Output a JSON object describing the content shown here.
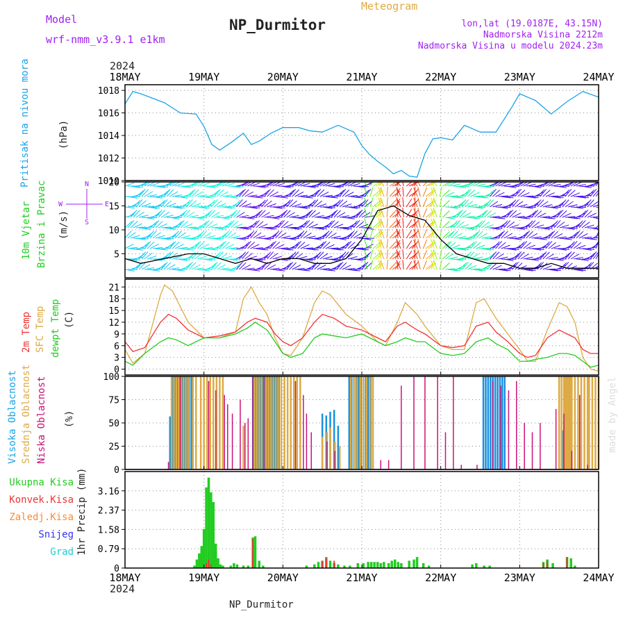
{
  "header": {
    "model_label": "Model",
    "model_name": "wrf-nmm_v3.9.1 e1km",
    "subtitle": "Meteogram",
    "station": "NP_Durmitor",
    "coords": "lon,lat (19.0187E, 43.15N)",
    "elevation": "Nadmorska Visina 2212m",
    "model_elevation": "Nadmorska Visina u modelu 2024.23m"
  },
  "time_axis": {
    "year": "2024",
    "ticks": [
      "18MAY",
      "19MAY",
      "20MAY",
      "21MAY",
      "22MAY",
      "23MAY",
      "24MAY"
    ]
  },
  "footer": {
    "station": "NP_Durmitor"
  },
  "watermark": "made by Angel",
  "colors": {
    "pressure": "#1aa3e8",
    "red": "#ee3333",
    "orange": "#ddaa44",
    "green": "#22cc22",
    "purple": "#a020f0",
    "magenta": "#cc1177",
    "blue": "#1a90dd",
    "cyan": "#22cccc",
    "snow": "#3333ee",
    "precip_orange": "#ff8833"
  },
  "panels": {
    "pressure": {
      "ylabel": "Pritisak na nivou mora",
      "unit": "(hPa)"
    },
    "wind": {
      "ylabel1": "10m Vjetar",
      "ylabel2": "Brzina i Pravac",
      "unit": "(m/s)",
      "compass_n": "N",
      "compass_s": "S",
      "compass_w": "W",
      "compass_e": "E"
    },
    "temp": {
      "label_2m": "2m Temp",
      "label_sfc": "SFC Temp",
      "label_dew": "dewpt Temp",
      "unit": "(C)"
    },
    "cloud": {
      "label_high": "Visoka Oblacnost",
      "label_mid": "Srednja Oblacnost",
      "label_low": "Niska Oblacnost",
      "unit": "(%)"
    },
    "precip": {
      "label_total": "Ukupna Kisa",
      "label_conv": "Konvek.Kisa",
      "label_frz": "Zaledj.Kisa",
      "label_snow": "Snijeg",
      "label_hail": "Grad",
      "unit": "1hr Precip (mm)"
    }
  },
  "chart_data": [
    {
      "type": "line",
      "panel": "pressure",
      "x_unit": "days since 18MAY 00UTC",
      "ylim": [
        1010,
        1018.5
      ],
      "yticks": [
        "1010",
        "1012",
        "1014",
        "1016",
        "1018"
      ],
      "grid": true,
      "series": [
        {
          "name": "Pritisak na nivou mora",
          "x": [
            0,
            0.1,
            0.2,
            0.35,
            0.5,
            0.7,
            0.9,
            1.0,
            1.1,
            1.2,
            1.35,
            1.5,
            1.6,
            1.7,
            1.85,
            2.0,
            2.2,
            2.35,
            2.5,
            2.7,
            2.9,
            3.0,
            3.1,
            3.2,
            3.3,
            3.4,
            3.5,
            3.6,
            3.7,
            3.8,
            3.9,
            4.0,
            4.15,
            4.3,
            4.5,
            4.7,
            4.9,
            5.0,
            5.2,
            5.4,
            5.6,
            5.8,
            6.0
          ],
          "y": [
            1016.8,
            1017.9,
            1017.7,
            1017.3,
            1016.9,
            1016,
            1015.9,
            1014.8,
            1013.2,
            1012.7,
            1013.4,
            1014.2,
            1013.2,
            1013.5,
            1014.2,
            1014.7,
            1014.7,
            1014.4,
            1014.3,
            1014.9,
            1014.3,
            1013.1,
            1012.3,
            1011.7,
            1011.2,
            1010.6,
            1010.9,
            1010.4,
            1010.3,
            1012.4,
            1013.7,
            1013.8,
            1013.6,
            1014.9,
            1014.3,
            1014.3,
            1016.5,
            1017.7,
            1017.1,
            1015.9,
            1017.0,
            1017.9,
            1017.4
          ]
        }
      ]
    },
    {
      "type": "line",
      "panel": "wind",
      "x_unit": "days since 18MAY 00UTC",
      "ylim": [
        0,
        20
      ],
      "yticks": [
        "5",
        "10",
        "15",
        "20"
      ],
      "grid": true,
      "series": [
        {
          "name": "Brzina i Pravac",
          "x": [
            0,
            0.2,
            0.5,
            0.8,
            1.0,
            1.2,
            1.4,
            1.6,
            1.8,
            2.0,
            2.2,
            2.4,
            2.6,
            2.8,
            3.0,
            3.2,
            3.4,
            3.6,
            3.8,
            4.0,
            4.2,
            4.4,
            4.6,
            4.8,
            5.0,
            5.2,
            5.4,
            5.6,
            5.8,
            6.0
          ],
          "y": [
            4,
            3,
            4,
            5,
            5,
            4,
            3,
            4,
            3,
            4,
            4,
            3,
            3,
            4,
            8,
            14,
            15,
            13,
            12,
            8,
            5,
            4,
            3,
            3,
            2,
            2,
            3,
            2,
            2,
            2
          ]
        }
      ]
    },
    {
      "type": "line",
      "panel": "temp",
      "x_unit": "days since 18MAY 00UTC",
      "ylim": [
        -1.5,
        23
      ],
      "yticks": [
        "0",
        "3",
        "6",
        "9",
        "12",
        "15",
        "18",
        "21"
      ],
      "grid": true,
      "series": [
        {
          "name": "2m Temp",
          "x": [
            0,
            0.1,
            0.25,
            0.45,
            0.55,
            0.65,
            0.8,
            1.0,
            1.2,
            1.4,
            1.55,
            1.65,
            1.8,
            1.9,
            2.0,
            2.1,
            2.25,
            2.4,
            2.5,
            2.65,
            2.8,
            3.0,
            3.2,
            3.3,
            3.45,
            3.55,
            3.7,
            3.8,
            4.0,
            4.15,
            4.3,
            4.45,
            4.6,
            4.7,
            4.85,
            5.0,
            5.1,
            5.2,
            5.35,
            5.5,
            5.6,
            5.7,
            5.8,
            5.9,
            6.0
          ],
          "y": [
            7,
            4.5,
            5.5,
            12,
            14,
            13,
            10,
            8,
            8.5,
            9.5,
            12,
            13,
            12,
            9,
            7,
            6,
            8,
            12,
            14,
            13,
            11,
            10,
            8,
            7,
            11,
            12,
            10,
            9,
            6,
            5.5,
            6,
            11,
            12,
            9.5,
            7,
            4,
            3,
            3.5,
            8,
            10,
            9,
            8,
            5,
            4,
            4
          ]
        },
        {
          "name": "SFC Temp",
          "x": [
            0,
            0.1,
            0.25,
            0.45,
            0.5,
            0.6,
            0.8,
            1.0,
            1.2,
            1.4,
            1.5,
            1.6,
            1.7,
            1.8,
            1.9,
            2.0,
            2.1,
            2.25,
            2.4,
            2.5,
            2.6,
            2.8,
            3.0,
            3.2,
            3.3,
            3.45,
            3.55,
            3.7,
            3.8,
            4.0,
            4.15,
            4.3,
            4.45,
            4.55,
            4.7,
            4.85,
            5.0,
            5.1,
            5.2,
            5.35,
            5.5,
            5.6,
            5.7,
            5.8,
            5.9,
            6.0
          ],
          "y": [
            5,
            1.5,
            4,
            19,
            21.5,
            20,
            12,
            8,
            8,
            9.5,
            18,
            21,
            17,
            14,
            8,
            4,
            3.5,
            8,
            17,
            20,
            19,
            14,
            11,
            7,
            6,
            12,
            17,
            14,
            11,
            6,
            5,
            5,
            17,
            18,
            13,
            9,
            5,
            2,
            2,
            10,
            17,
            16,
            12,
            3,
            0,
            -0.5
          ]
        },
        {
          "name": "dewpt Temp",
          "x": [
            0,
            0.1,
            0.25,
            0.45,
            0.55,
            0.65,
            0.8,
            1.0,
            1.2,
            1.4,
            1.55,
            1.65,
            1.8,
            1.9,
            2.0,
            2.1,
            2.25,
            2.4,
            2.5,
            2.65,
            2.8,
            3.0,
            3.2,
            3.3,
            3.45,
            3.55,
            3.7,
            3.8,
            4.0,
            4.15,
            4.3,
            4.45,
            4.6,
            4.7,
            4.85,
            5.0,
            5.1,
            5.2,
            5.35,
            5.5,
            5.6,
            5.7,
            5.8,
            5.9,
            6.0
          ],
          "y": [
            2,
            1,
            4,
            7,
            8,
            7.5,
            6,
            8,
            8,
            9,
            10.5,
            12,
            10,
            7,
            4,
            3,
            4,
            8,
            9,
            8.5,
            8,
            9,
            7,
            6,
            7,
            8,
            7,
            7,
            4,
            3.5,
            4,
            7,
            8,
            6.5,
            5,
            2,
            2,
            2.5,
            3,
            4,
            4,
            3.5,
            2,
            0.5,
            1
          ]
        }
      ]
    },
    {
      "type": "bar",
      "panel": "cloud",
      "x_unit": "days since 18MAY 00UTC",
      "ylim": [
        0,
        100
      ],
      "yticks": [
        "0",
        "25",
        "50",
        "75",
        "100"
      ],
      "grid": true,
      "series": [
        {
          "name": "Visoka Oblacnost",
          "x": [
            0.57,
            0.6,
            0.63,
            0.66,
            0.69,
            0.72,
            0.75,
            0.78,
            0.81,
            0.84,
            1.62,
            1.65,
            1.68,
            1.71,
            1.74,
            1.77,
            1.8,
            1.83,
            1.86,
            1.89,
            1.92,
            1.95,
            2.5,
            2.55,
            2.6,
            2.65,
            2.7,
            2.84,
            2.87,
            2.9,
            2.93,
            2.96,
            2.99,
            3.02,
            3.05,
            3.08,
            3.11,
            3.14,
            4.54,
            4.57,
            4.6,
            4.63,
            4.66,
            4.69,
            4.72,
            4.75,
            4.78,
            4.81,
            5.55
          ],
          "values": [
            57,
            100,
            100,
            100,
            100,
            100,
            100,
            100,
            100,
            100,
            100,
            100,
            100,
            100,
            100,
            100,
            100,
            100,
            100,
            100,
            100,
            100,
            60,
            58,
            62,
            64,
            47,
            100,
            100,
            100,
            100,
            100,
            100,
            100,
            100,
            100,
            100,
            100,
            100,
            100,
            100,
            100,
            100,
            100,
            100,
            100,
            100,
            100,
            42
          ]
        },
        {
          "name": "Srednja Oblacnost",
          "x": [
            0.59,
            0.62,
            0.65,
            0.68,
            0.71,
            0.74,
            0.77,
            0.8,
            0.86,
            0.9,
            0.96,
            1.0,
            1.04,
            1.08,
            1.12,
            1.16,
            1.2,
            1.24,
            1.5,
            1.64,
            1.67,
            1.7,
            1.73,
            1.76,
            1.79,
            1.82,
            1.85,
            1.88,
            1.91,
            1.94,
            1.98,
            2.02,
            2.06,
            2.1,
            2.14,
            2.18,
            2.22,
            2.5,
            2.56,
            2.6,
            2.66,
            2.72,
            2.86,
            2.9,
            2.94,
            2.98,
            3.02,
            3.06,
            3.1,
            3.14,
            5.5,
            5.53,
            5.56,
            5.58,
            5.6,
            5.62,
            5.64,
            5.66,
            5.7,
            5.74,
            5.78,
            5.82,
            5.86,
            5.88,
            5.92,
            5.96,
            6.0
          ],
          "values": [
            100,
            100,
            100,
            100,
            100,
            100,
            100,
            100,
            100,
            100,
            100,
            100,
            100,
            100,
            100,
            100,
            100,
            100,
            47,
            100,
            100,
            100,
            100,
            100,
            100,
            100,
            100,
            100,
            100,
            100,
            100,
            100,
            100,
            100,
            100,
            100,
            100,
            35,
            40,
            45,
            30,
            25,
            100,
            100,
            100,
            100,
            100,
            100,
            100,
            100,
            100,
            100,
            100,
            100,
            100,
            100,
            100,
            100,
            100,
            100,
            100,
            100,
            100,
            100,
            100,
            100,
            100
          ]
        },
        {
          "name": "Niska Oblacnost",
          "x": [
            0.55,
            0.7,
            1.06,
            1.15,
            1.26,
            1.3,
            1.36,
            1.46,
            1.52,
            1.56,
            1.62,
            1.76,
            2.16,
            2.26,
            2.3,
            2.36,
            2.56,
            2.66,
            3.24,
            3.34,
            3.5,
            3.66,
            3.8,
            3.96,
            4.06,
            4.16,
            4.26,
            4.46,
            4.66,
            4.76,
            4.86,
            4.96,
            5.06,
            5.16,
            5.26,
            5.46,
            5.56,
            5.66,
            5.76,
            5.86
          ],
          "values": [
            8,
            100,
            95,
            85,
            80,
            70,
            60,
            75,
            50,
            55,
            100,
            100,
            95,
            80,
            60,
            40,
            30,
            20,
            10,
            10,
            90,
            100,
            100,
            100,
            40,
            100,
            5,
            5,
            95,
            90,
            85,
            95,
            50,
            40,
            50,
            65,
            60,
            20,
            80,
            5
          ]
        }
      ]
    },
    {
      "type": "bar",
      "panel": "precip",
      "x_unit": "days since 18MAY 00UTC",
      "ylim": [
        0,
        3.95
      ],
      "yticks": [
        "0",
        "0.79",
        "1.58",
        "2.37",
        "3.16"
      ],
      "grid": true,
      "series": [
        {
          "name": "Ukupna Kisa",
          "x": [
            0.88,
            0.91,
            0.94,
            0.97,
            1.0,
            1.03,
            1.06,
            1.09,
            1.12,
            1.15,
            1.18,
            1.21,
            1.24,
            1.34,
            1.38,
            1.42,
            1.5,
            1.56,
            1.62,
            1.65,
            1.7,
            1.75,
            2.3,
            2.4,
            2.45,
            2.5,
            2.55,
            2.6,
            2.65,
            2.7,
            2.78,
            2.85,
            2.95,
            3.02,
            3.08,
            3.12,
            3.16,
            3.2,
            3.24,
            3.28,
            3.34,
            3.38,
            3.42,
            3.46,
            3.5,
            3.6,
            3.66,
            3.7,
            3.78,
            3.85,
            4.4,
            4.45,
            4.55,
            4.62,
            5.3,
            5.35,
            5.42,
            5.6,
            5.65,
            5.7
          ],
          "values": [
            0.1,
            0.35,
            0.6,
            0.9,
            1.6,
            3.3,
            3.7,
            3.1,
            2.7,
            1.0,
            0.4,
            0.15,
            0.1,
            0.1,
            0.2,
            0.15,
            0.1,
            0.1,
            1.25,
            1.3,
            0.3,
            0.1,
            0.1,
            0.15,
            0.25,
            0.3,
            0.45,
            0.3,
            0.2,
            0.15,
            0.1,
            0.1,
            0.2,
            0.2,
            0.25,
            0.25,
            0.25,
            0.25,
            0.2,
            0.25,
            0.2,
            0.3,
            0.35,
            0.25,
            0.2,
            0.3,
            0.35,
            0.45,
            0.2,
            0.1,
            0.15,
            0.2,
            0.1,
            0.1,
            0.25,
            0.35,
            0.2,
            0.45,
            0.4,
            0.1
          ]
        },
        {
          "name": "Konvek.Kisa",
          "x": [
            1.03,
            1.06,
            1.09,
            1.62,
            2.5,
            2.55,
            2.65,
            5.3,
            5.35,
            5.6
          ],
          "values": [
            0.2,
            0.35,
            0.15,
            1.2,
            0.3,
            0.4,
            0.3,
            0.2,
            0.3,
            0.45
          ]
        },
        {
          "name": "Zaledj.Kisa",
          "x": [],
          "values": []
        },
        {
          "name": "Snijeg",
          "x": [],
          "values": []
        },
        {
          "name": "Grad",
          "x": [],
          "values": []
        }
      ]
    }
  ]
}
